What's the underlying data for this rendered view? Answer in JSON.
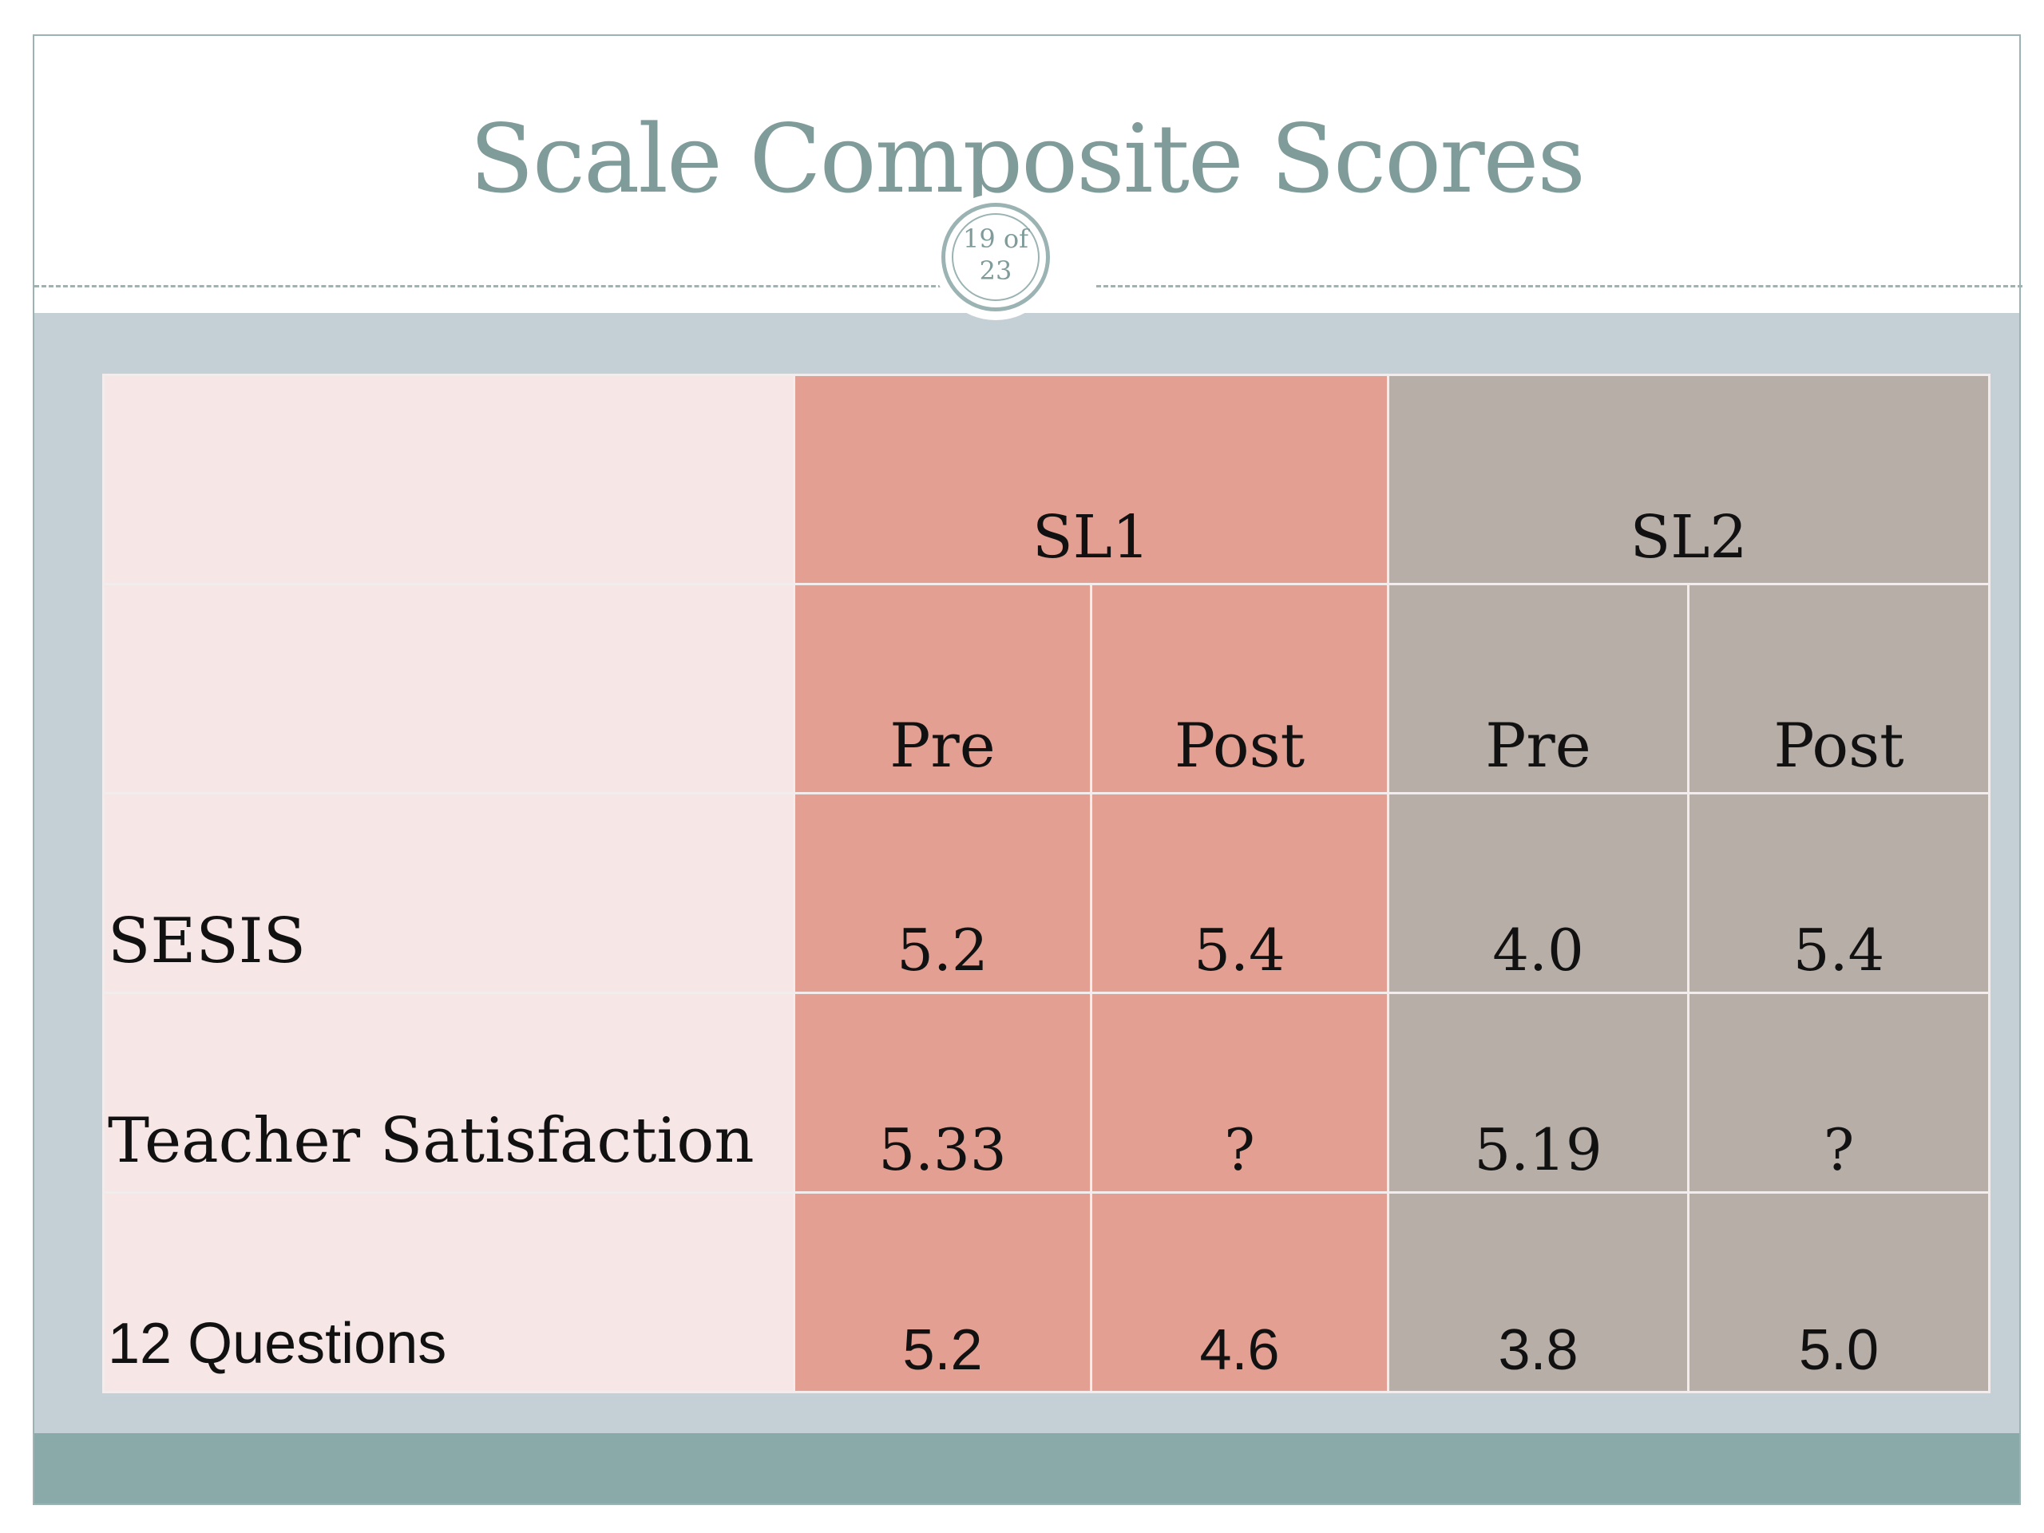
{
  "slide": {
    "title": "Scale Composite Scores",
    "page_number": "19 of",
    "page_total": "23"
  },
  "table": {
    "groups": [
      "SL1",
      "SL2"
    ],
    "subheaders": [
      "Pre",
      "Post",
      "Pre",
      "Post"
    ],
    "rows": [
      {
        "label": "SESIS",
        "values": [
          "5.2",
          "5.4",
          "4.0",
          "5.4"
        ]
      },
      {
        "label": "Teacher Satisfaction",
        "values": [
          "5.33",
          "?",
          "5.19",
          "?"
        ]
      },
      {
        "label": "12 Questions",
        "values": [
          "5.2",
          "4.6",
          "3.8",
          "5.0"
        ]
      }
    ]
  },
  "colors": {
    "title": "#7f9c9a",
    "band": "#c4d0d6",
    "footer": "#8aa9a9",
    "label_column": "#f6e7e6",
    "sl1_column": "#e29f92",
    "sl2_column": "#b8aea8"
  }
}
